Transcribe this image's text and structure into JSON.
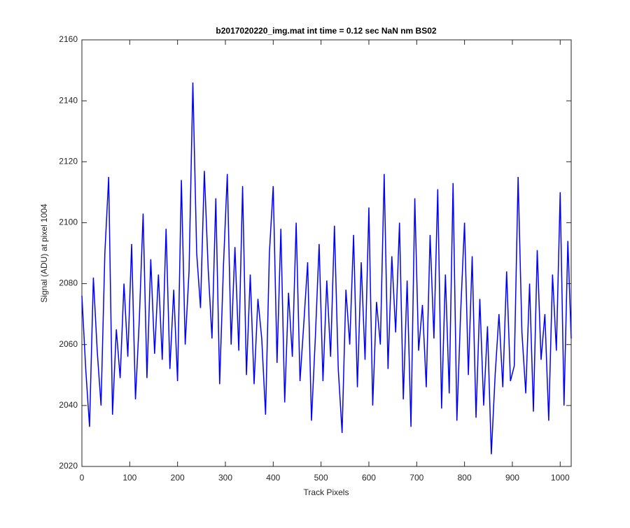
{
  "chart_data": {
    "type": "line",
    "title": "b2017020220_img.mat int time = 0.12 sec  NaN nm BS02",
    "x_label": "Track Pixels",
    "y_label": "Signal (ADU) at pixel 1004",
    "x": [
      0,
      8,
      16,
      24,
      32,
      40,
      48,
      56,
      64,
      72,
      80,
      88,
      96,
      104,
      112,
      120,
      128,
      136,
      144,
      152,
      160,
      168,
      176,
      184,
      192,
      200,
      208,
      216,
      224,
      232,
      240,
      248,
      256,
      264,
      272,
      280,
      288,
      296,
      304,
      312,
      320,
      328,
      336,
      344,
      352,
      360,
      368,
      376,
      384,
      392,
      400,
      408,
      416,
      424,
      432,
      440,
      448,
      456,
      464,
      472,
      480,
      488,
      496,
      504,
      512,
      520,
      528,
      536,
      544,
      552,
      560,
      568,
      576,
      584,
      592,
      600,
      608,
      616,
      624,
      632,
      640,
      648,
      656,
      664,
      672,
      680,
      688,
      696,
      704,
      712,
      720,
      728,
      736,
      744,
      752,
      760,
      768,
      776,
      784,
      792,
      800,
      808,
      816,
      824,
      832,
      840,
      848,
      856,
      864,
      872,
      880,
      888,
      896,
      904,
      912,
      920,
      928,
      936,
      944,
      952,
      960,
      968,
      976,
      984,
      992,
      1000,
      1008,
      1016,
      1023
    ],
    "series": [
      {
        "color": "#0000ff",
        "values": [
          2076,
          2052,
          2033,
          2082,
          2058,
          2040,
          2090,
          2115,
          2037,
          2065,
          2049,
          2080,
          2056,
          2093,
          2042,
          2068,
          2103,
          2049,
          2088,
          2057,
          2083,
          2055,
          2098,
          2052,
          2078,
          2048,
          2114,
          2060,
          2084,
          2146,
          2090,
          2072,
          2117,
          2085,
          2062,
          2108,
          2047,
          2086,
          2116,
          2060,
          2092,
          2058,
          2112,
          2050,
          2083,
          2047,
          2075,
          2062,
          2037,
          2090,
          2112,
          2054,
          2098,
          2041,
          2077,
          2056,
          2100,
          2048,
          2067,
          2087,
          2035,
          2062,
          2093,
          2048,
          2081,
          2056,
          2099,
          2052,
          2031,
          2078,
          2060,
          2096,
          2046,
          2087,
          2055,
          2105,
          2040,
          2074,
          2060,
          2116,
          2052,
          2089,
          2064,
          2100,
          2042,
          2081,
          2033,
          2108,
          2058,
          2073,
          2046,
          2096,
          2062,
          2111,
          2039,
          2083,
          2044,
          2113,
          2035,
          2071,
          2100,
          2050,
          2089,
          2036,
          2075,
          2040,
          2066,
          2024,
          2050,
          2070,
          2046,
          2084,
          2048,
          2053,
          2115,
          2064,
          2044,
          2080,
          2038,
          2091,
          2055,
          2070,
          2035,
          2083,
          2058,
          2110,
          2040,
          2094,
          2062
        ]
      }
    ],
    "xlim": [
      0,
      1023
    ],
    "ylim": [
      2020,
      2160
    ],
    "xticks": [
      0,
      100,
      200,
      300,
      400,
      500,
      600,
      700,
      800,
      900,
      1000
    ],
    "yticks": [
      2020,
      2040,
      2060,
      2080,
      2100,
      2120,
      2140,
      2160
    ]
  }
}
